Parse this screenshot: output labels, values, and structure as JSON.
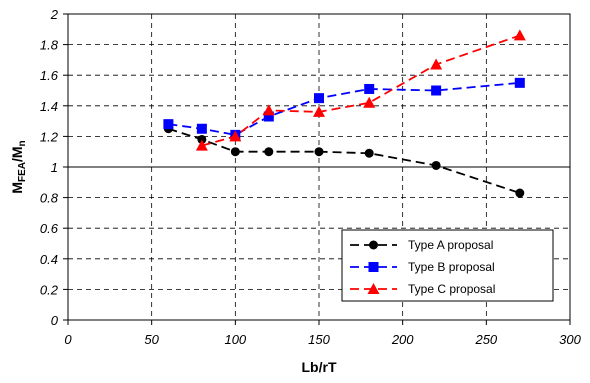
{
  "chart_data": {
    "type": "line",
    "title": "",
    "xlabel": "Lb/rT",
    "ylabel": {
      "main": "M",
      "sub1": "FEA",
      "sep": "/M",
      "sub2": "n"
    },
    "xlim": [
      0,
      300
    ],
    "ylim": [
      0,
      2
    ],
    "xticks": [
      0,
      50,
      100,
      150,
      200,
      250,
      300
    ],
    "yticks": [
      0,
      0.2,
      0.4,
      0.6,
      0.8,
      1,
      1.2,
      1.4,
      1.6,
      1.8,
      2
    ],
    "xtick_labels": [
      "0",
      "50",
      "100",
      "150",
      "200",
      "250",
      "300"
    ],
    "ytick_labels": [
      "0",
      "0.2",
      "0.4",
      "0.6",
      "0.8",
      "1",
      "1.2",
      "1.4",
      "1.6",
      "1.8",
      "2"
    ],
    "grid": true,
    "grid_style": "dashed",
    "reference_line": 1,
    "legend_position": "bottom-right",
    "series": [
      {
        "name": "Type A proposal",
        "color": "#000000",
        "marker": "circle",
        "x": [
          60,
          80,
          100,
          120,
          150,
          180,
          220,
          270
        ],
        "y": [
          1.25,
          1.18,
          1.1,
          1.1,
          1.1,
          1.09,
          1.01,
          0.83
        ]
      },
      {
        "name": "Type B proposal",
        "color": "#0000ff",
        "marker": "square",
        "x": [
          60,
          80,
          100,
          120,
          150,
          180,
          220,
          270
        ],
        "y": [
          1.28,
          1.25,
          1.21,
          1.33,
          1.45,
          1.51,
          1.5,
          1.55
        ]
      },
      {
        "name": "Type C proposal",
        "color": "#ff0000",
        "marker": "triangle",
        "x": [
          80,
          100,
          120,
          150,
          180,
          220,
          270
        ],
        "y": [
          1.14,
          1.2,
          1.37,
          1.36,
          1.42,
          1.67,
          1.86
        ]
      }
    ]
  }
}
